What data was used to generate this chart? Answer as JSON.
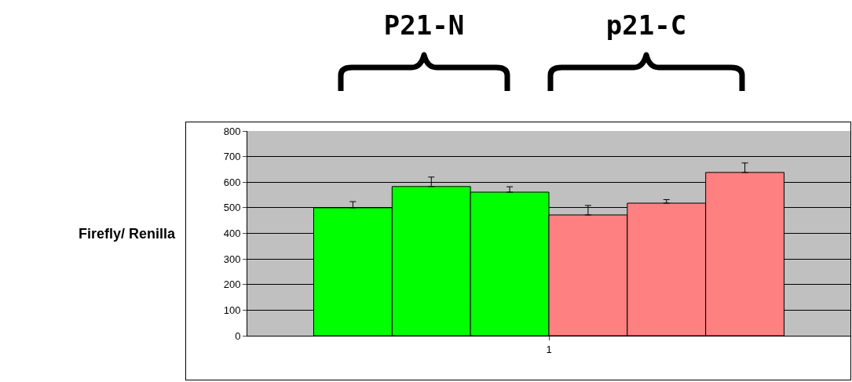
{
  "chart_data": {
    "type": "bar",
    "ylabel": "Firefly/ Renilla",
    "categories": [
      "1"
    ],
    "series": [
      {
        "color": "#00ff00",
        "values": [
          500
        ],
        "errors": [
          [
            500,
            524
          ]
        ]
      },
      {
        "color": "#00ff00",
        "values": [
          583
        ],
        "errors": [
          [
            583,
            620
          ]
        ]
      },
      {
        "color": "#00ff00",
        "values": [
          561
        ],
        "errors": [
          [
            561,
            582
          ]
        ]
      },
      {
        "color": "#ff8080",
        "values": [
          472
        ],
        "errors": [
          [
            472,
            509
          ]
        ]
      },
      {
        "color": "#ff8080",
        "values": [
          518
        ],
        "errors": [
          [
            518,
            532
          ]
        ]
      },
      {
        "color": "#ff8080",
        "values": [
          638
        ],
        "errors": [
          [
            638,
            675
          ]
        ]
      }
    ],
    "ylim": [
      0,
      800
    ],
    "yticks": [
      0,
      100,
      200,
      300,
      400,
      500,
      600,
      700,
      800
    ],
    "grid": "y",
    "annotations": [
      "P21-N",
      "p21-C"
    ]
  }
}
